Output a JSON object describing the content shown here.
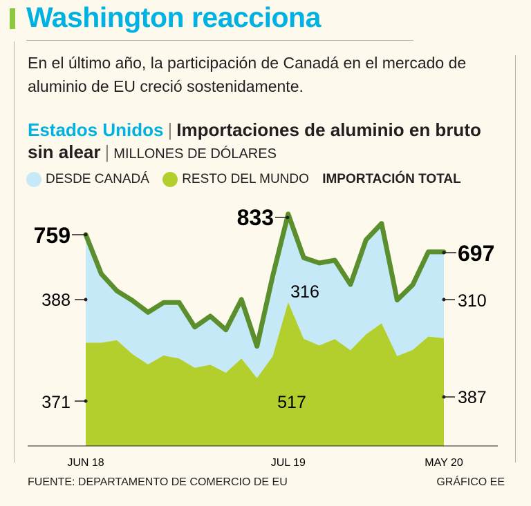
{
  "header": {
    "title": "Washington reacciona",
    "subtitle": "En el último año, la participación de Canadá en el mercado de aluminio de EU creció sostenidamente."
  },
  "chart_heading": {
    "country": "Estados Unidos",
    "separator": "|",
    "topic": "Importaciones de aluminio en bruto sin alear",
    "units": "MILLONES DE DÓLARES"
  },
  "legend": {
    "canada": "DESDE CANADÁ",
    "rest": "RESTO DEL MUNDO",
    "total": "IMPORTACIÓN TOTAL"
  },
  "colors": {
    "canada": "#c6e9f7",
    "rest": "#b3cf2e",
    "total_line": "#5b8f2e",
    "background": "#fdf9ec"
  },
  "chart_data": {
    "type": "area",
    "stacked": true,
    "x_ticks": [
      "JUN 18",
      "JUL 19",
      "MAY 20"
    ],
    "series": [
      {
        "name": "RESTO DEL MUNDO",
        "values": [
          371,
          371,
          380,
          330,
          293,
          325,
          314,
          281,
          292,
          263,
          314,
          244,
          322,
          517,
          385,
          361,
          384,
          344,
          401,
          441,
          323,
          345,
          393,
          387
        ]
      },
      {
        "name": "DESDE CANADÁ",
        "values": [
          388,
          247,
          177,
          192,
          187,
          190,
          201,
          146,
          174,
          154,
          212,
          114,
          287,
          316,
          291,
          296,
          283,
          236,
          339,
          358,
          201,
          234,
          304,
          310
        ]
      }
    ],
    "totals": [
      759,
      618,
      557,
      522,
      480,
      515,
      515,
      427,
      466,
      417,
      526,
      358,
      609,
      833,
      676,
      657,
      667,
      580,
      740,
      799,
      524,
      579,
      697,
      697
    ],
    "annotations": {
      "first_total": "759",
      "first_canada": "388",
      "first_rest": "371",
      "peak_total": "833",
      "peak_canada": "316",
      "peak_rest": "517",
      "last_total": "697",
      "last_canada": "310",
      "last_rest": "387"
    },
    "ylim": [
      0,
      900
    ]
  },
  "footer": {
    "source": "FUENTE: DEPARTAMENTO DE COMERCIO DE EU",
    "credit": "GRÁFICO EE"
  }
}
